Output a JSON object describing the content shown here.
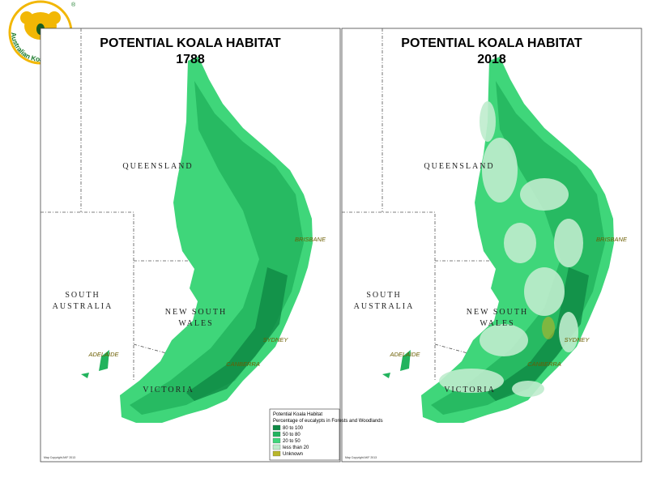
{
  "logo": {
    "text": "Australian Koala Foundation",
    "mark": "®"
  },
  "maps": [
    {
      "title": "POTENTIAL KOALA HABITAT",
      "year": "1788",
      "labels": [
        "QUEENSLAND",
        "SOUTH",
        "AUSTRALIA",
        "NEW SOUTH",
        "WALES",
        "BRISBANE",
        "SYDNEY",
        "CANBERRA",
        "ADELAIDE",
        "VICTORIA"
      ],
      "copyright": "Map Copyright AKF 2013"
    },
    {
      "title": "POTENTIAL KOALA HABITAT",
      "year": "2018",
      "labels": [
        "QUEENSLAND",
        "SOUTH",
        "AUSTRALIA",
        "NEW SOUTH",
        "WALES",
        "BRISBANE",
        "SYDNEY",
        "CANBERRA",
        "ADELAIDE",
        "VICTORIA"
      ],
      "copyright": "Map Copyright AKF 2013"
    }
  ],
  "legend": {
    "title": "Potential Koala Habitat",
    "subtitle": "Percentage of eucalypts in Forests and Woodlands",
    "items": [
      {
        "label": "80 to 100",
        "color": "#0f8a45"
      },
      {
        "label": "50 to 80",
        "color": "#22b35d"
      },
      {
        "label": "20 to 50",
        "color": "#3fd67a"
      },
      {
        "label": "less than 20",
        "color": "#bfeccd"
      },
      {
        "label": "Unknown",
        "color": "#b9b62a"
      }
    ]
  }
}
